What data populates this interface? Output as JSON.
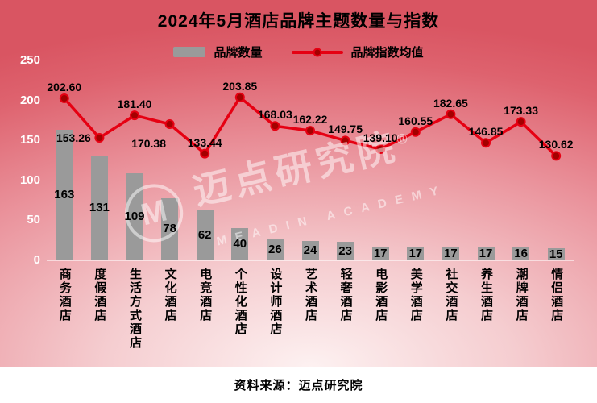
{
  "title": "2024年5月酒店品牌主题数量与指数",
  "legend": {
    "bar_label": "品牌数量",
    "line_label": "品牌指数均值"
  },
  "watermark": {
    "badge": "M",
    "brand": "迈点研究院",
    "reg": "®",
    "sub": "MEADIN ACADEMY"
  },
  "source": "资料来源：迈点研究院",
  "colors": {
    "background_top": "#d95562",
    "background_light": "#fdf1f1",
    "bar": "#9a9a9a",
    "line": "#e60012",
    "marker_fill": "#a40000",
    "label_text": "#000000",
    "axis_text": "#ffffff"
  },
  "chart_data": {
    "type": "bar",
    "combo": "bar+line",
    "title": "2024年5月酒店品牌主题数量与指数",
    "categories": [
      "商务酒店",
      "度假酒店",
      "生活方式酒店",
      "文化酒店",
      "电竞酒店",
      "个性化酒店",
      "设计师酒店",
      "艺术酒店",
      "轻奢酒店",
      "电影酒店",
      "美学酒店",
      "社交酒店",
      "养生酒店",
      "潮牌酒店",
      "情侣酒店"
    ],
    "series": [
      {
        "name": "品牌数量",
        "type": "bar",
        "values": [
          163,
          131,
          109,
          78,
          62,
          40,
          26,
          24,
          23,
          17,
          17,
          17,
          17,
          16,
          15
        ]
      },
      {
        "name": "品牌指数均值",
        "type": "line",
        "values": [
          202.6,
          153.26,
          181.4,
          170.38,
          133.44,
          203.85,
          168.03,
          162.22,
          149.75,
          139.1,
          160.55,
          182.65,
          146.85,
          173.33,
          130.62
        ],
        "labels": [
          "202.60",
          "153.26",
          "181.40",
          "170.38",
          "133.44",
          "203.85",
          "168.03",
          "162.22",
          "149.75",
          "139.10",
          "160.55",
          "182.65",
          "146.85",
          "173.33",
          "130.62"
        ]
      }
    ],
    "ylim": [
      0,
      250
    ],
    "yticks": [
      0,
      50,
      100,
      150,
      200,
      250
    ],
    "legend_position": "top",
    "grid": false,
    "source_note": "资料来源：迈点研究院"
  }
}
